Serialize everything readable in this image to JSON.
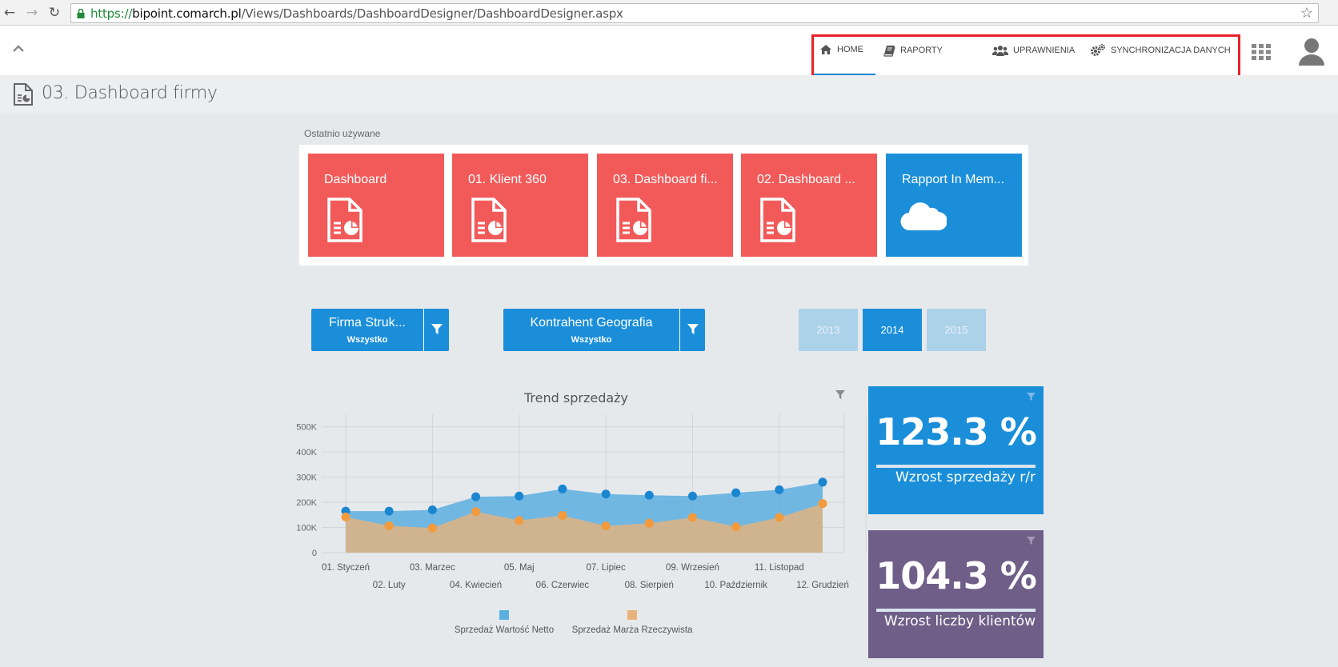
{
  "browser": {
    "url_scheme": "https://",
    "url_host": "bipoint.comarch.pl",
    "url_path": "/Views/Dashboards/DashboardDesigner/DashboardDesigner.aspx"
  },
  "nav": {
    "items": [
      {
        "label": "HOME",
        "icon": "home-icon"
      },
      {
        "label": "RAPORTY",
        "icon": "book-icon"
      },
      {
        "label": "UPRAWNIENIA",
        "icon": "users-icon"
      },
      {
        "label": "SYNCHRONIZACJA DANYCH",
        "icon": "gears-icon"
      }
    ],
    "active": "HOME",
    "accent": "#1a86d0"
  },
  "page": {
    "title": "03. Dashboard firmy"
  },
  "recent": {
    "label": "Ostatnio używane",
    "tiles": [
      {
        "title": "Dashboard",
        "icon": "report-icon",
        "color": "#f25a5a"
      },
      {
        "title": "01. Klient 360",
        "icon": "report-icon",
        "color": "#f25a5a"
      },
      {
        "title": "03. Dashboard fi...",
        "icon": "report-icon",
        "color": "#f25a5a"
      },
      {
        "title": "02. Dashboard ...",
        "icon": "report-icon",
        "color": "#f25a5a"
      },
      {
        "title": "Rapport In Mem...",
        "icon": "cloud-icon",
        "color": "#1a8ed9"
      }
    ]
  },
  "filters": [
    {
      "title": "Firma Struk...",
      "value": "Wszystko"
    },
    {
      "title": "Kontrahent Geografia",
      "value": "Wszystko"
    }
  ],
  "years": {
    "options": [
      "2013",
      "2014",
      "2015"
    ],
    "selected": "2014"
  },
  "chart_data": {
    "type": "area",
    "title": "Trend sprzedaży",
    "categories": [
      "01. Styczeń",
      "02. Luty",
      "03. Marzec",
      "04. Kwiecień",
      "05. Maj",
      "06. Czerwiec",
      "07. Lipiec",
      "08. Sierpień",
      "09. Wrzesień",
      "10. Październik",
      "11. Listopad",
      "12. Grudzień"
    ],
    "series": [
      {
        "name": "Sprzedaż Wartość Netto",
        "color": "#5aaee0",
        "marker_color": "#1a86d0",
        "values": [
          165000,
          165000,
          170000,
          222000,
          225000,
          253000,
          233000,
          228000,
          225000,
          238000,
          250000,
          280000
        ]
      },
      {
        "name": "Sprzedaż Marża Rzeczywista",
        "color": "#e8b37a",
        "marker_color": "#f39a3c",
        "values": [
          142000,
          107000,
          98000,
          163000,
          128000,
          148000,
          106000,
          117000,
          140000,
          103000,
          140000,
          195000
        ]
      }
    ],
    "y_ticks": [
      "500K",
      "400K",
      "300K",
      "200K",
      "100K",
      "0"
    ],
    "ylim": [
      0,
      550000
    ],
    "grid": true,
    "legend_position": "bottom"
  },
  "kpis": [
    {
      "value": "123.3 %",
      "label": "Wzrost sprzedaży r/r",
      "color": "#1a8ed9"
    },
    {
      "value": "104.3 %",
      "label": "Wzrost liczby klientów",
      "color": "#6f5e88"
    }
  ]
}
